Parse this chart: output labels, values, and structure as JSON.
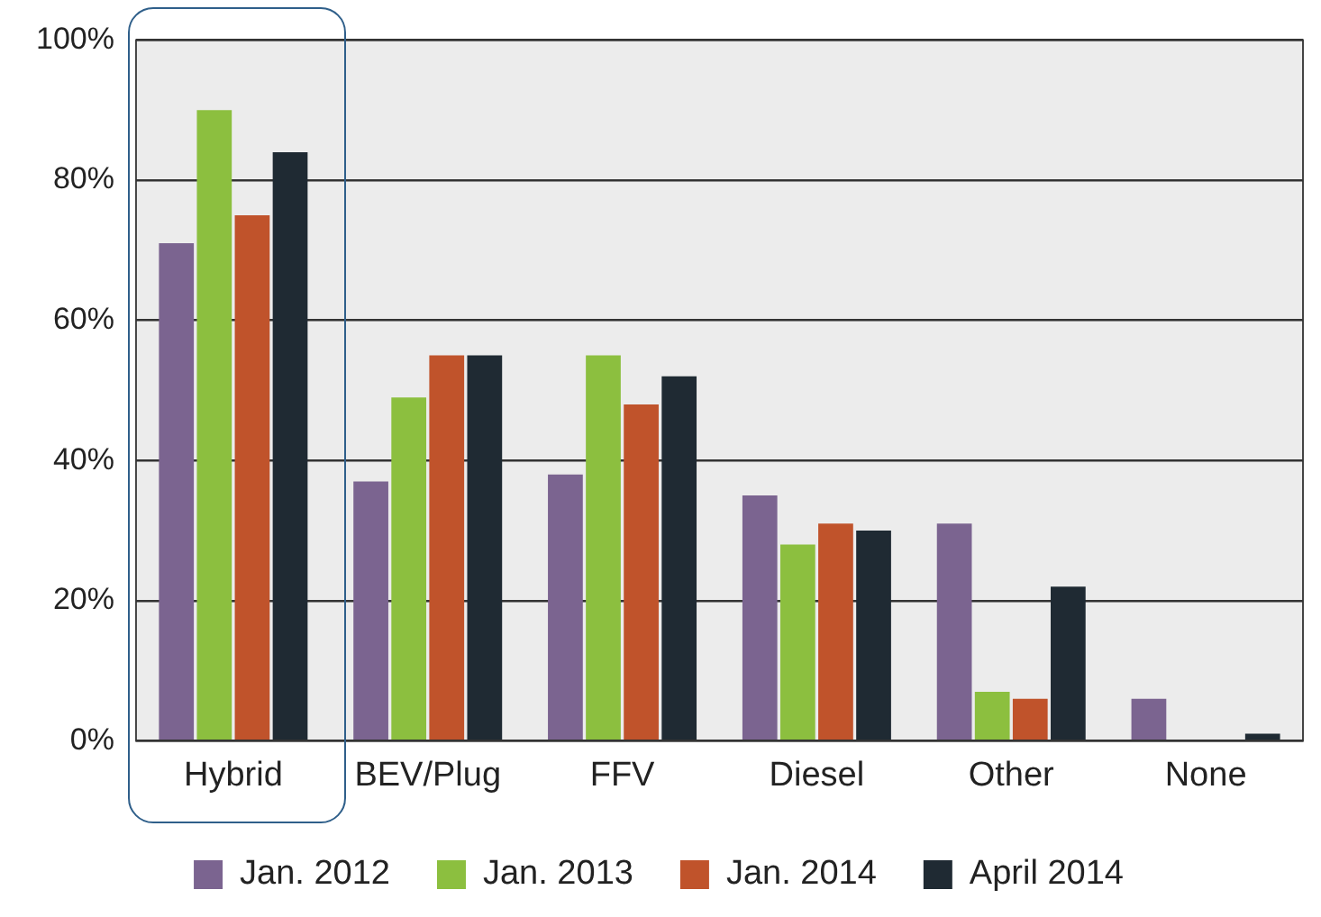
{
  "chart_data": {
    "type": "bar",
    "categories": [
      "Hybrid",
      "BEV/Plug",
      "FFV",
      "Diesel",
      "Other",
      "None"
    ],
    "series": [
      {
        "name": "Jan. 2012",
        "color": "#7b6490",
        "values": [
          71,
          37,
          38,
          35,
          31,
          6
        ]
      },
      {
        "name": "Jan. 2013",
        "color": "#8cbf3f",
        "values": [
          90,
          49,
          55,
          28,
          7,
          0
        ]
      },
      {
        "name": "Jan. 2014",
        "color": "#c0532b",
        "values": [
          75,
          55,
          48,
          31,
          6,
          0
        ]
      },
      {
        "name": "April 2014",
        "color": "#1f2a33",
        "values": [
          84,
          55,
          52,
          30,
          22,
          1
        ]
      }
    ],
    "ylim": [
      0,
      100
    ],
    "yticks": [
      {
        "value": 0,
        "label": "0%"
      },
      {
        "value": 20,
        "label": "20%"
      },
      {
        "value": 40,
        "label": "40%"
      },
      {
        "value": 60,
        "label": "60%"
      },
      {
        "value": 80,
        "label": "80%"
      },
      {
        "value": 100,
        "label": "100%"
      }
    ],
    "grid": "y",
    "legend": "bottom"
  }
}
